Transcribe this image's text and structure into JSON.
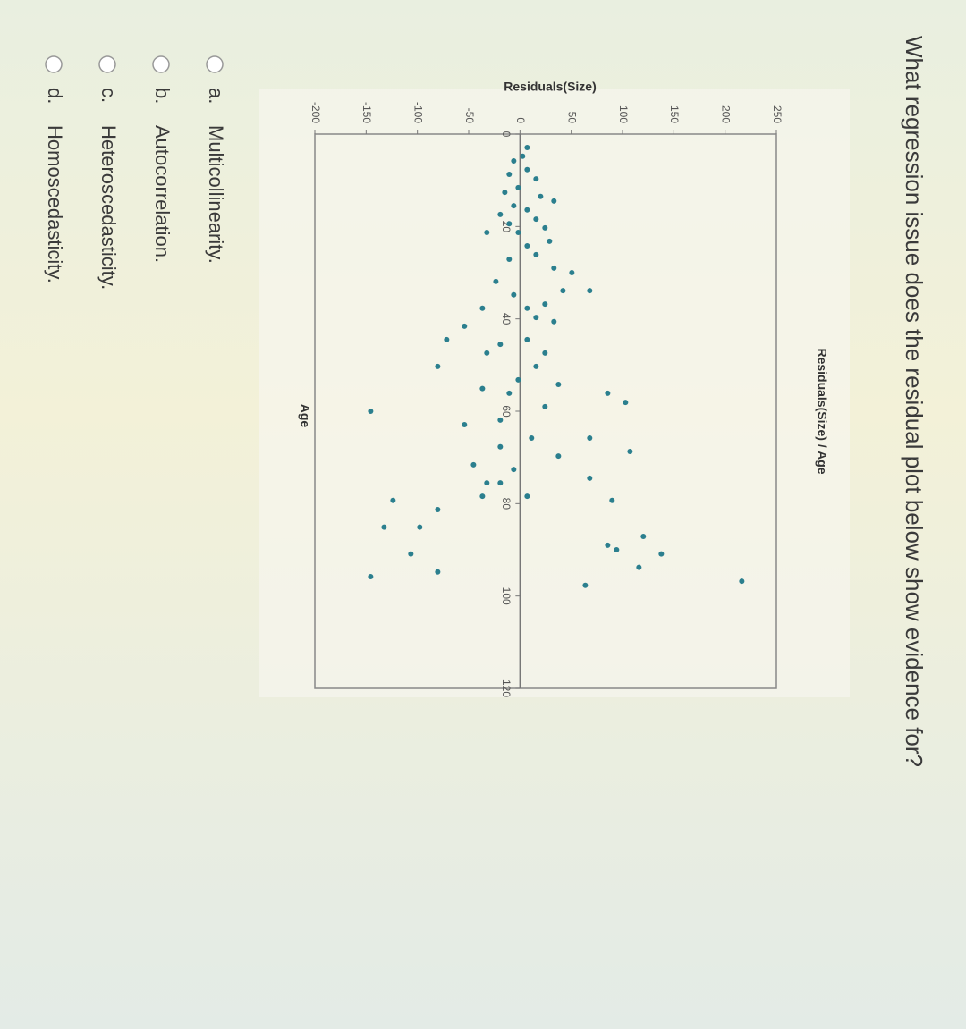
{
  "question": "What regression issue does the residual plot below show evidence for?",
  "chart_data": {
    "type": "scatter",
    "title": "Residuals(Size) / Age",
    "x_label": "Age",
    "y_label": "Residuals(Size)",
    "color": "#2b7f8e",
    "x": [
      2.9,
      4.8,
      5.8,
      7.7,
      8.7,
      9.7,
      11.6,
      12.6,
      13.5,
      14.5,
      15.5,
      16.4,
      17.4,
      18.4,
      19.4,
      20.3,
      21.3,
      21.3,
      23.2,
      24.2,
      27.1,
      26.1,
      29.0,
      30.0,
      31.9,
      33.9,
      34.8,
      33.9,
      36.8,
      37.7,
      37.7,
      41.6,
      39.7,
      40.6,
      44.5,
      44.5,
      45.5,
      47.4,
      47.4,
      50.3,
      50.3,
      53.2,
      54.2,
      55.1,
      56.1,
      56.1,
      59.0,
      61.9,
      60.0,
      58.1,
      62.9,
      65.8,
      65.8,
      67.7,
      69.7,
      71.6,
      68.7,
      72.6,
      74.5,
      75.5,
      78.4,
      79.3,
      79.3,
      85.1,
      81.3,
      85.1,
      87.1,
      89.0,
      90.0,
      90.9,
      90.9,
      93.8,
      96.8,
      95.8,
      97.7,
      94.8,
      75.5,
      78.4
    ],
    "values": [
      7.0,
      2.6,
      -6.1,
      7.0,
      -10.5,
      15.7,
      -1.7,
      -14.8,
      20.1,
      33.1,
      -6.1,
      7.0,
      -19.2,
      15.7,
      -10.5,
      24.4,
      -1.7,
      -32.3,
      28.8,
      7.0,
      -10.5,
      15.7,
      33.1,
      50.6,
      -23.5,
      41.9,
      -6.1,
      68.0,
      24.4,
      7.0,
      -36.6,
      -54.1,
      15.7,
      33.1,
      -71.5,
      7.0,
      -19.2,
      -32.3,
      24.4,
      15.7,
      -80.2,
      -1.7,
      37.5,
      -36.6,
      -10.5,
      85.5,
      24.4,
      -19.2,
      -145.6,
      102.9,
      -54.1,
      11.3,
      68.0,
      -19.2,
      37.5,
      -45.3,
      107.3,
      -6.1,
      68.0,
      -32.3,
      7.0,
      89.8,
      -123.8,
      -97.7,
      -80.2,
      -132.5,
      120.3,
      85.5,
      94.2,
      -106.4,
      137.8,
      116.0,
      216.3,
      -145.6,
      63.7,
      -80.2,
      -19.2,
      -36.6
    ],
    "xlim": [
      0,
      120
    ],
    "xticks": [
      0,
      20,
      40,
      60,
      80,
      100,
      120
    ],
    "ylim": [
      -200,
      250
    ],
    "yticks": [
      250,
      200,
      150,
      100,
      50,
      0,
      -50,
      -100,
      -150,
      -200
    ]
  },
  "options": [
    {
      "letter": "a.",
      "text": "Multicollinearity."
    },
    {
      "letter": "b.",
      "text": "Autocorrelation."
    },
    {
      "letter": "c.",
      "text": "Heteroscedasticity."
    },
    {
      "letter": "d.",
      "text": "Homoscedasticity."
    }
  ]
}
